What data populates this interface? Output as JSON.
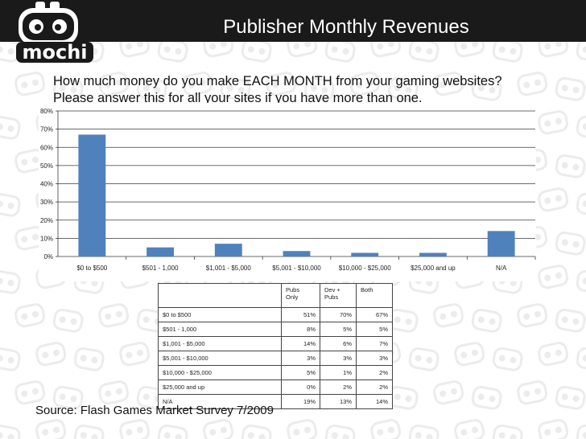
{
  "slide": {
    "title": "Publisher Monthly Revenues",
    "logo_text": "mochi",
    "question": [
      "How much money do you make EACH MONTH from your gaming websites?",
      "Please answer this for all your sites if you have more than one."
    ],
    "source": "Source: Flash Games Market Survey 7/2009"
  },
  "colors": {
    "bar": "#4f81bd",
    "header": "#1a1a1a",
    "grid": "#3a3a3a",
    "pattern": "#ececec"
  },
  "icons": [
    "mochi-robot-logo-icon",
    "robot-face-pattern-icon"
  ],
  "chart_data": {
    "type": "bar",
    "categories": [
      "$0 to $500",
      "$501 - 1,000",
      "$1,001 - $5,000",
      "$5,001 - $10,000",
      "$10,000 - $25,000",
      "$25,000 and up",
      "N/A"
    ],
    "values": [
      67,
      5,
      7,
      3,
      2,
      2,
      14
    ],
    "ylim": [
      0,
      80
    ],
    "yticks": [
      "0%",
      "10%",
      "20%",
      "30%",
      "40%",
      "50%",
      "60%",
      "70%",
      "80%"
    ],
    "grid": true,
    "title": "",
    "xlabel": "",
    "ylabel": ""
  },
  "table": {
    "headers": [
      "",
      "Pubs\nOnly",
      "Dev +\nPubs",
      "Both"
    ],
    "rows": [
      [
        "$0 to $500",
        "51%",
        "70%",
        "67%"
      ],
      [
        "$501 - 1,000",
        "8%",
        "5%",
        "5%"
      ],
      [
        "$1,001 - $5,000",
        "14%",
        "6%",
        "7%"
      ],
      [
        "$5,001 - $10,000",
        "3%",
        "3%",
        "3%"
      ],
      [
        "$10,000 - $25,000",
        "5%",
        "1%",
        "2%"
      ],
      [
        "$25,000 and up",
        "0%",
        "2%",
        "2%"
      ],
      [
        "N/A",
        "19%",
        "13%",
        "14%"
      ]
    ]
  }
}
